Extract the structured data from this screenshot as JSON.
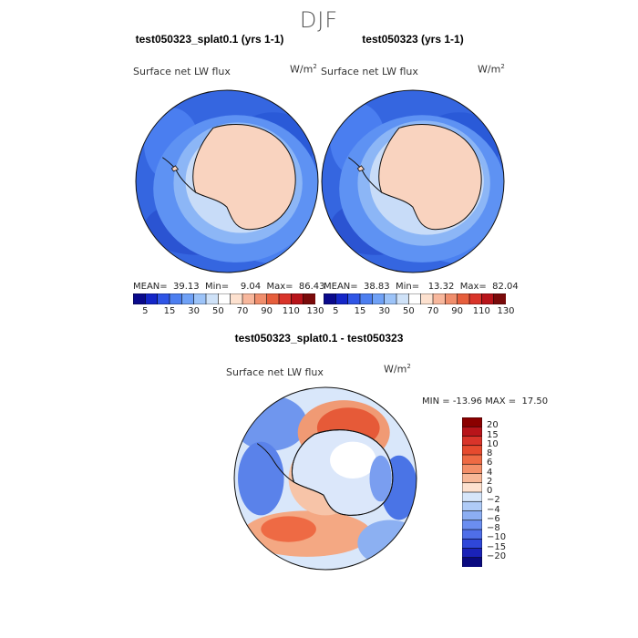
{
  "figure": {
    "season": "DJF"
  },
  "chart_data": [
    {
      "type": "heatmap",
      "title": "test050323_splat0.1 (yrs 1-1)",
      "variable": "Surface net LW flux",
      "units": "W/m2",
      "stats": {
        "mean_label": "MEAN=",
        "mean": "39.13",
        "min_label": "Min=",
        "min": "9.04",
        "max_label": "Max=",
        "max": "86.43"
      },
      "colorbar": {
        "levels": [
          5,
          15,
          30,
          50,
          70,
          90,
          110,
          130
        ],
        "tick_labels": [
          "5",
          "15",
          "30",
          "50",
          "70",
          "90",
          "110",
          "130"
        ]
      }
    },
    {
      "type": "heatmap",
      "title": "test050323 (yrs 1-1)",
      "variable": "Surface net LW flux",
      "units": "W/m2",
      "stats": {
        "mean_label": "MEAN=",
        "mean": "38.83",
        "min_label": "Min=",
        "min": "13.32",
        "max_label": "Max=",
        "max": "82.04"
      },
      "colorbar": {
        "levels": [
          5,
          15,
          30,
          50,
          70,
          90,
          110,
          130
        ],
        "tick_labels": [
          "5",
          "15",
          "30",
          "50",
          "70",
          "90",
          "110",
          "130"
        ]
      }
    },
    {
      "type": "heatmap",
      "title": "test050323_splat0.1 - test050323",
      "variable": "Surface net LW flux",
      "units": "W/m2",
      "stats": {
        "min_label": "MIN =",
        "min": "-13.96",
        "max_label": "MAX =",
        "max": "17.50"
      },
      "colorbar": {
        "levels": [
          20,
          15,
          10,
          8,
          6,
          4,
          2,
          0,
          -2,
          -4,
          -6,
          -8,
          -10,
          -15,
          -20
        ],
        "tick_labels": [
          "20",
          "15",
          "10",
          "8",
          "6",
          "4",
          "2",
          "0",
          "−2",
          "−4",
          "−6",
          "−8",
          "−10",
          "−15",
          "−20"
        ]
      }
    }
  ],
  "colors": {
    "abs_scale": [
      "#0a0a8c",
      "#1426c8",
      "#2f55e6",
      "#4d7ff0",
      "#6fa1f6",
      "#9cc3f8",
      "#cfe2f8",
      "#ffffff",
      "#fde1cf",
      "#f8b79c",
      "#f08e6c",
      "#e65e3c",
      "#d9342a",
      "#b8141a",
      "#7a0a0a"
    ],
    "diff_scale": [
      "#8b0000",
      "#b8141a",
      "#d9342a",
      "#e64a2e",
      "#ee6a44",
      "#f38f69",
      "#f7b797",
      "#fde1cf",
      "#d6e6fa",
      "#afcbf7",
      "#8caef2",
      "#6b8ef0",
      "#4f6ee8",
      "#2f47d9",
      "#1a22b8",
      "#0a0a80"
    ],
    "ocean": "#4a7ae8",
    "ice_shelf": "#dfe8f7",
    "land": "#f9d3bf"
  }
}
